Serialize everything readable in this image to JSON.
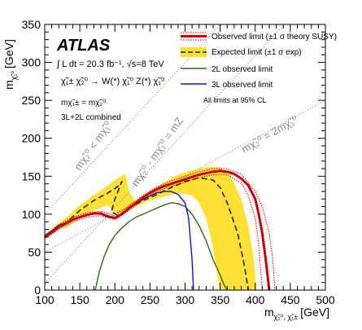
{
  "chart_data": {
    "type": "line",
    "xlabel": "m",
    "xlabel_sub": "χ̃₂⁰, χ̃₁±",
    "xlabel_unit": "[GeV]",
    "ylabel": "m",
    "ylabel_sub": "χ̃₁⁰",
    "ylabel_unit": "[GeV]",
    "xlim": [
      100,
      500
    ],
    "ylim": [
      0,
      350
    ],
    "xticks": [
      100,
      150,
      200,
      250,
      300,
      350,
      400,
      450,
      500
    ],
    "yticks": [
      0,
      50,
      100,
      150,
      200,
      250,
      300,
      350
    ],
    "atlas_label": "ATLAS",
    "lumi_text": "∫ L dt = 20.3 fb⁻¹, √s=8 TeV",
    "process_text": "χ̃₁± χ̃₂⁰ → W(*) χ̃₁⁰ Z(*) χ̃₁⁰",
    "mass_relation_text": "mχ̃₁± = mχ̃₂⁰",
    "combined_text": "3L+2L combined",
    "cl_text": "All limits at 95% CL",
    "diagonal_labels": [
      "mχ̃₂⁰ < mχ̃₁⁰",
      "mχ̃₂⁰ - mχ̃₁⁰ = mZ",
      "mχ̃₂⁰ = 2mχ̃₁⁰"
    ],
    "legend": [
      {
        "label": "Observed limit (±1 σ theory SUSY)",
        "color": "#cc0000"
      },
      {
        "label": "Expected limit (±1 σ exp)",
        "color": "#ffe135"
      },
      {
        "label": "2L observed limit",
        "color": "#2e6b0f"
      },
      {
        "label": "3L observed limit",
        "color": "#1010e0"
      }
    ],
    "series": [
      {
        "name": "Observed limit",
        "color": "#cc0000",
        "x": [
          100,
          110,
          120,
          130,
          140,
          150,
          160,
          170,
          180,
          190,
          200,
          210,
          220,
          230,
          240,
          250,
          260,
          270,
          280,
          290,
          300,
          310,
          320,
          330,
          340,
          350,
          360,
          370,
          380,
          390,
          400,
          405,
          410,
          415,
          420
        ],
        "y": [
          70,
          76,
          83,
          88,
          93,
          96,
          99,
          101,
          101,
          97,
          95,
          100,
          108,
          115,
          122,
          128,
          133,
          137,
          140,
          143,
          146,
          149,
          152,
          154,
          156,
          157,
          156,
          153,
          147,
          138,
          120,
          100,
          75,
          40,
          0
        ]
      },
      {
        "name": "Observed +1σ theory",
        "color": "#cc0000",
        "x": [
          100,
          120,
          140,
          160,
          180,
          200,
          220,
          240,
          260,
          280,
          300,
          320,
          340,
          360,
          380,
          400,
          410,
          420,
          425,
          428
        ],
        "y": [
          72,
          86,
          96,
          102,
          104,
          98,
          111,
          125,
          136,
          144,
          150,
          156,
          160,
          160,
          153,
          130,
          110,
          75,
          40,
          0
        ]
      },
      {
        "name": "Observed -1σ theory",
        "color": "#cc0000",
        "x": [
          100,
          120,
          140,
          160,
          180,
          200,
          220,
          240,
          260,
          280,
          300,
          320,
          340,
          360,
          380,
          390,
          400,
          405,
          410
        ],
        "y": [
          68,
          80,
          90,
          96,
          98,
          93,
          105,
          119,
          130,
          137,
          142,
          148,
          152,
          152,
          141,
          125,
          95,
          60,
          0
        ]
      },
      {
        "name": "Expected limit",
        "color": "#222222",
        "x": [
          115,
          130,
          150,
          170,
          190,
          205,
          210,
          200,
          195,
          205,
          220,
          240,
          260,
          280,
          300,
          320,
          340,
          350,
          360,
          375,
          385,
          390
        ],
        "y": [
          80,
          88,
          105,
          118,
          128,
          137,
          143,
          120,
          103,
          98,
          108,
          118,
          126,
          135,
          143,
          148,
          145,
          135,
          115,
          75,
          30,
          0
        ]
      },
      {
        "name": "Expected +1σ exp",
        "color": "#222222",
        "x": [
          110,
          130,
          150,
          170,
          190,
          205,
          215,
          220,
          230,
          250,
          270,
          290,
          310,
          330,
          350,
          365,
          380,
          390,
          398,
          402
        ],
        "y": [
          82,
          95,
          112,
          125,
          138,
          148,
          153,
          130,
          116,
          130,
          142,
          152,
          158,
          162,
          162,
          150,
          120,
          85,
          40,
          0
        ]
      },
      {
        "name": "Expected -1σ exp",
        "color": "#222222",
        "x": [
          130,
          150,
          170,
          190,
          200,
          210,
          230,
          250,
          270,
          290,
          310,
          320,
          330,
          340,
          345,
          350
        ],
        "y": [
          82,
          95,
          105,
          112,
          100,
          102,
          110,
          118,
          123,
          128,
          125,
          115,
          95,
          55,
          25,
          0
        ]
      },
      {
        "name": "2L observed limit",
        "color": "#2e6b0f",
        "x": [
          172,
          178,
          185,
          192,
          200,
          210,
          220,
          230,
          240,
          250,
          260,
          270,
          280,
          290,
          300,
          310,
          320,
          330,
          340,
          350,
          355,
          360
        ],
        "y": [
          0,
          25,
          45,
          60,
          72,
          82,
          90,
          96,
          100,
          104,
          108,
          112,
          115,
          114,
          110,
          100,
          85,
          65,
          40,
          20,
          8,
          0
        ]
      },
      {
        "name": "3L observed limit",
        "color": "#1010e0",
        "x": [
          100,
          110,
          120,
          130,
          140,
          150,
          160,
          170,
          180,
          190,
          200,
          210,
          220,
          230,
          240,
          250,
          260,
          270,
          280,
          290,
          300,
          305,
          310,
          312
        ],
        "y": [
          72,
          78,
          85,
          89,
          93,
          96,
          99,
          100,
          100,
          97,
          95,
          100,
          107,
          114,
          120,
          124,
          128,
          130,
          130,
          126,
          115,
          95,
          40,
          0
        ]
      }
    ]
  }
}
